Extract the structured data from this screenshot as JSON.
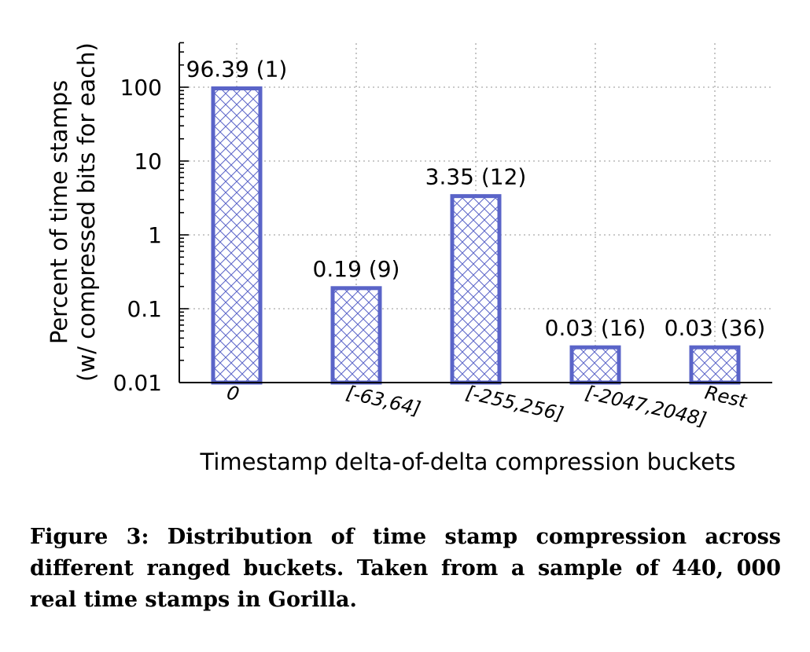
{
  "chart_data": {
    "type": "bar",
    "categories": [
      "0",
      "[-63,64]",
      "[-255,256]",
      "[-2047,2048]",
      "Rest"
    ],
    "values": [
      96.39,
      0.19,
      3.35,
      0.03,
      0.03
    ],
    "data_labels": [
      "96.39 (1)",
      "0.19 (9)",
      "3.35 (12)",
      "0.03 (16)",
      "0.03 (36)"
    ],
    "yscale": "log",
    "ylim": [
      0.01,
      400
    ],
    "yticks": [
      0.01,
      0.1,
      1,
      10,
      100
    ],
    "ytick_labels": [
      "0.01",
      "0.1",
      "1",
      "10",
      "100"
    ],
    "xlabel": "Timestamp delta-of-delta compression buckets",
    "ylabel": [
      "Percent of time stamps",
      "(w/ compressed bits for each)"
    ],
    "grid": true,
    "bar_color": "#5a64c8",
    "bar_pattern": "crosshatch"
  },
  "caption": "Figure 3: Distribution of time stamp compression across different ranged buckets. Taken from a sample of 440, 000 real time stamps in Gorilla."
}
